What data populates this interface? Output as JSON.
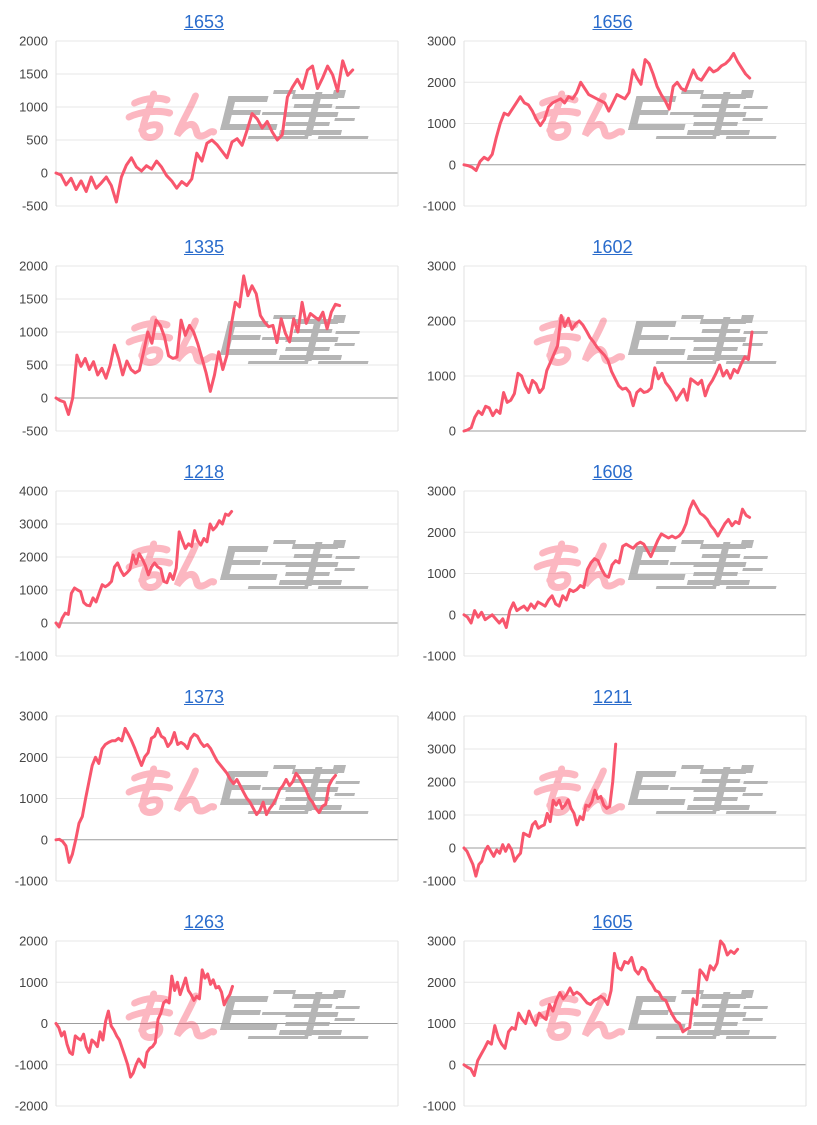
{
  "colors": {
    "line": "#f8566d",
    "title_link": "#2a6ccc",
    "axis_label": "#454545",
    "gridline": "#e7e7e7",
    "zero_line": "#9c9c9c",
    "plot_border": "#e0e0e0",
    "watermark_pink": "#f8566d",
    "watermark_gray": "#ababab",
    "background": "#ffffff"
  },
  "watermark": {
    "pink_text": "みん",
    "gray_text": "レポ",
    "style": "pink hiragana + gray speed-line glyphs, repeated on every chart"
  },
  "chart_data": [
    {
      "type": "line",
      "title": "1653",
      "ylim": [
        -500,
        2000
      ],
      "ystep": 500,
      "yticks": [
        2000,
        1500,
        1000,
        500,
        0,
        -500
      ],
      "x_slots": 69,
      "grid": true,
      "legend": "none",
      "values": [
        0,
        -30,
        -180,
        -80,
        -250,
        -120,
        -280,
        -60,
        -230,
        -150,
        -60,
        -190,
        -440,
        -60,
        120,
        230,
        90,
        30,
        110,
        60,
        180,
        90,
        -40,
        -120,
        -230,
        -130,
        -190,
        -90,
        300,
        180,
        450,
        500,
        430,
        330,
        230,
        470,
        520,
        420,
        650,
        900,
        820,
        680,
        780,
        620,
        500,
        580,
        1150,
        1300,
        1420,
        1280,
        1560,
        1620,
        1280,
        1440,
        1620,
        1490,
        1240,
        1700,
        1480,
        1560
      ]
    },
    {
      "type": "line",
      "title": "1656",
      "ylim": [
        -1000,
        3000
      ],
      "ystep": 1000,
      "yticks": [
        3000,
        2000,
        1000,
        0,
        -1000
      ],
      "x_slots": 86,
      "grid": true,
      "legend": "none",
      "values": [
        0,
        -20,
        -60,
        -140,
        80,
        180,
        120,
        250,
        650,
        1000,
        1250,
        1200,
        1350,
        1500,
        1650,
        1500,
        1450,
        1300,
        1100,
        950,
        1100,
        1400,
        1500,
        1550,
        1600,
        1500,
        1650,
        1600,
        1750,
        2000,
        1850,
        1700,
        1650,
        1600,
        1550,
        1500,
        1300,
        1500,
        1700,
        1650,
        1600,
        1750,
        2300,
        2100,
        1950,
        2550,
        2450,
        2200,
        1900,
        1700,
        1550,
        1350,
        1900,
        2000,
        1850,
        1800,
        2050,
        2300,
        2100,
        2050,
        2200,
        2350,
        2250,
        2300,
        2400,
        2450,
        2550,
        2700,
        2500,
        2350,
        2200,
        2100
      ]
    },
    {
      "type": "line",
      "title": "1335",
      "ylim": [
        -500,
        2000
      ],
      "ystep": 500,
      "yticks": [
        2000,
        1500,
        1000,
        500,
        0,
        -500
      ],
      "x_slots": 83,
      "grid": true,
      "legend": "none",
      "values": [
        0,
        -40,
        -60,
        -250,
        0,
        650,
        480,
        600,
        430,
        550,
        350,
        450,
        300,
        500,
        800,
        600,
        350,
        560,
        430,
        380,
        420,
        700,
        1000,
        830,
        1180,
        1100,
        930,
        640,
        600,
        620,
        1180,
        950,
        1100,
        1000,
        820,
        600,
        380,
        100,
        350,
        700,
        430,
        650,
        1100,
        1450,
        1380,
        1850,
        1550,
        1700,
        1580,
        1250,
        1150,
        1080,
        1100,
        840,
        1200,
        980,
        850,
        1200,
        1000,
        1450,
        1130,
        1280,
        1230,
        1180,
        1300,
        1050,
        1300,
        1420,
        1400
      ]
    },
    {
      "type": "line",
      "title": "1602",
      "ylim": [
        0,
        3000
      ],
      "ystep": 1000,
      "yticks": [
        3000,
        2000,
        1000,
        0
      ],
      "x_slots": 96,
      "grid": true,
      "legend": "none",
      "values": [
        0,
        20,
        60,
        250,
        360,
        300,
        450,
        420,
        280,
        380,
        320,
        700,
        520,
        560,
        680,
        1050,
        1000,
        820,
        700,
        920,
        860,
        700,
        780,
        1100,
        1250,
        1400,
        1550,
        2100,
        1900,
        2050,
        1850,
        1950,
        2000,
        1930,
        1820,
        1700,
        1620,
        1520,
        1450,
        1380,
        1280,
        1080,
        950,
        820,
        760,
        780,
        700,
        460,
        700,
        760,
        700,
        720,
        780,
        1150,
        950,
        1050,
        880,
        800,
        700,
        560,
        660,
        760,
        560,
        950,
        900,
        850,
        920,
        640,
        820,
        920,
        1050,
        1200,
        1000,
        1100,
        960,
        1120,
        1060,
        1220,
        1350,
        1300,
        1800
      ]
    },
    {
      "type": "line",
      "title": "1218",
      "ylim": [
        -1000,
        4000
      ],
      "ystep": 1000,
      "yticks": [
        4000,
        3000,
        2000,
        1000,
        0,
        -1000
      ],
      "x_slots": 112,
      "grid": true,
      "legend": "none",
      "values": [
        0,
        -120,
        150,
        300,
        260,
        900,
        1060,
        1000,
        950,
        620,
        540,
        520,
        760,
        640,
        900,
        1160,
        1100,
        1160,
        1260,
        1700,
        1820,
        1600,
        1440,
        1520,
        1620,
        2060,
        1800,
        2100,
        1940,
        1740,
        1460,
        1700,
        1820,
        1700,
        1640,
        1260,
        1220,
        1500,
        1320,
        1660,
        2760,
        2500,
        2260,
        2400,
        2320,
        2800,
        2500,
        2360,
        2560,
        2460,
        3000,
        2820,
        2920,
        3100,
        3000,
        3300,
        3260,
        3380
      ]
    },
    {
      "type": "line",
      "title": "1608",
      "ylim": [
        -1000,
        3000
      ],
      "ystep": 1000,
      "yticks": [
        3000,
        2000,
        1000,
        0,
        -1000
      ],
      "x_slots": 98,
      "grid": true,
      "legend": "none",
      "values": [
        0,
        -60,
        -200,
        100,
        -60,
        60,
        -120,
        -60,
        0,
        -100,
        -200,
        -100,
        -310,
        100,
        290,
        100,
        160,
        210,
        110,
        260,
        160,
        310,
        260,
        210,
        360,
        460,
        260,
        210,
        460,
        360,
        610,
        560,
        610,
        710,
        660,
        1100,
        1260,
        1360,
        1310,
        1110,
        960,
        910,
        1210,
        1310,
        1260,
        1660,
        1710,
        1660,
        1610,
        1710,
        1760,
        1710,
        1560,
        1410,
        1610,
        1810,
        1960,
        1910,
        1860,
        1910,
        1860,
        1910,
        2010,
        2210,
        2560,
        2760,
        2610,
        2460,
        2400,
        2310,
        2160,
        2060,
        1910,
        2060,
        2210,
        2310,
        2160,
        2260,
        2210,
        2560,
        2410,
        2360
      ]
    },
    {
      "type": "line",
      "title": "1373",
      "ylim": [
        -1000,
        3000
      ],
      "ystep": 1000,
      "yticks": [
        3000,
        2000,
        1000,
        0,
        -1000
      ],
      "x_slots": 105,
      "grid": true,
      "legend": "none",
      "values": [
        0,
        10,
        -40,
        -150,
        -550,
        -350,
        0,
        400,
        560,
        1000,
        1400,
        1800,
        2000,
        1850,
        2200,
        2310,
        2360,
        2400,
        2400,
        2460,
        2400,
        2700,
        2560,
        2400,
        2210,
        2000,
        1800,
        2010,
        2110,
        2460,
        2510,
        2700,
        2510,
        2460,
        2260,
        2360,
        2600,
        2310,
        2360,
        2310,
        2210,
        2460,
        2560,
        2510,
        2360,
        2260,
        2310,
        2210,
        2060,
        1910,
        1810,
        1710,
        1610,
        1460,
        1360,
        1460,
        1310,
        1160,
        1010,
        910,
        760,
        610,
        710,
        910,
        610,
        760,
        860,
        1010,
        1210,
        1310,
        1460,
        1310,
        1410,
        1610,
        1510,
        1360,
        1210,
        1010,
        910,
        760,
        660,
        810,
        860,
        1310,
        1460,
        1560
      ]
    },
    {
      "type": "line",
      "title": "1211",
      "ylim": [
        -1000,
        4000
      ],
      "ystep": 1000,
      "yticks": [
        4000,
        3000,
        2000,
        1000,
        0,
        -1000
      ],
      "x_slots": 116,
      "grid": true,
      "legend": "none",
      "values": [
        0,
        -100,
        -300,
        -500,
        -850,
        -500,
        -400,
        -100,
        50,
        -100,
        -250,
        -60,
        -160,
        100,
        -100,
        100,
        -60,
        -400,
        -260,
        -160,
        450,
        400,
        350,
        700,
        800,
        600,
        660,
        700,
        1050,
        800,
        1450,
        1300,
        1450,
        1200,
        1300,
        1460,
        1200,
        1050,
        700,
        950,
        860,
        1300,
        1260,
        1400,
        1750,
        1500,
        1560,
        1300,
        1200,
        1260,
        2000,
        3150
      ]
    },
    {
      "type": "line",
      "title": "1263",
      "ylim": [
        -2000,
        2000
      ],
      "ystep": 1000,
      "yticks": [
        2000,
        1000,
        0,
        -1000,
        -2000
      ],
      "x_slots": 125,
      "grid": true,
      "legend": "none",
      "values": [
        0,
        -100,
        -300,
        -200,
        -500,
        -700,
        -750,
        -300,
        -360,
        -400,
        -260,
        -560,
        -700,
        -400,
        -460,
        -560,
        -200,
        -400,
        50,
        300,
        -60,
        -160,
        -300,
        -400,
        -600,
        -800,
        -1000,
        -1300,
        -1200,
        -1000,
        -860,
        -960,
        -1060,
        -700,
        -600,
        -560,
        -460,
        100,
        250,
        500,
        560,
        500,
        1150,
        800,
        1000,
        700,
        900,
        1100,
        800,
        700,
        560,
        660,
        600,
        1300,
        1100,
        1200,
        950,
        1060,
        860,
        900,
        760,
        450,
        600,
        700,
        900
      ]
    },
    {
      "type": "line",
      "title": "1605",
      "ylim": [
        -1000,
        3000
      ],
      "ystep": 1000,
      "yticks": [
        3000,
        2000,
        1000,
        0,
        -1000
      ],
      "x_slots": 101,
      "grid": true,
      "legend": "none",
      "values": [
        0,
        -60,
        -100,
        -260,
        100,
        250,
        400,
        560,
        500,
        950,
        660,
        500,
        400,
        800,
        900,
        860,
        1250,
        1100,
        1000,
        1300,
        1100,
        960,
        1250,
        1160,
        1100,
        1460,
        1300,
        1560,
        1750,
        1600,
        1700,
        1860,
        1700,
        1760,
        1700,
        1600,
        1500,
        1460,
        1560,
        1600,
        1660,
        1600,
        1460,
        1800,
        2700,
        2360,
        2300,
        2500,
        2460,
        2600,
        2300,
        2200,
        2360,
        2300,
        2060,
        1950,
        1800,
        1760,
        1600,
        1560,
        1360,
        1200,
        1060,
        1000,
        800,
        860,
        900,
        1600,
        1460,
        2300,
        2200,
        2060,
        2400,
        2300,
        2460,
        3000,
        2900,
        2660,
        2760,
        2700,
        2800
      ]
    }
  ]
}
